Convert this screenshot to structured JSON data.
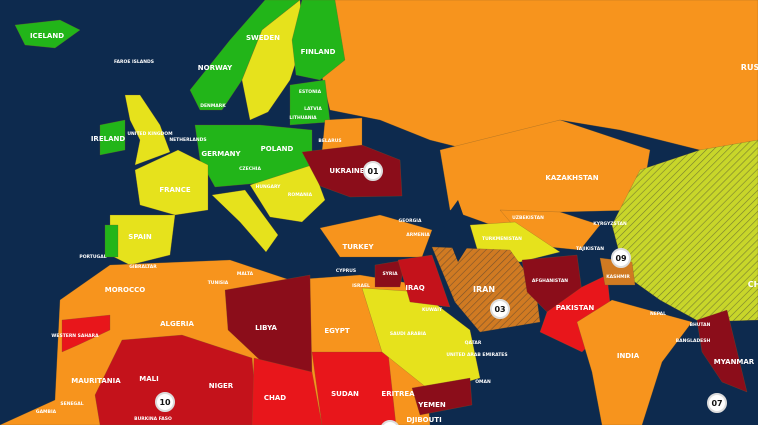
{
  "colors": {
    "ocean": "#0d2a4e",
    "minimal": "#22b519",
    "low": "#e6e21c",
    "medium": "#f7941d",
    "high": "#e8161b",
    "extreme": "#8b0d1a",
    "hatched_base": "#c8d62a"
  },
  "labels": [
    "ICELAND",
    "NORWAY",
    "SWEDEN",
    "FINLAND",
    "ESTONIA",
    "LATVIA",
    "LITHUANIA",
    "DENMARK",
    "IRELAND",
    "UNITED KINGDOM",
    "GERMANY",
    "POLAND",
    "BELARUS",
    "UKRAINE",
    "CZECHIA",
    "HUNGARY",
    "ROMANIA",
    "FRANCE",
    "SPAIN",
    "PORTUGAL",
    "TURKEY",
    "MALTA",
    "CYPRUS",
    "ISRAEL",
    "MOROCCO",
    "ALGERIA",
    "TUNISIA",
    "LIBYA",
    "EGYPT",
    "WESTERN SAHARA",
    "MAURITANIA",
    "MALI",
    "NIGER",
    "CHAD",
    "SUDAN",
    "ERITREA",
    "YEMEN",
    "SAUDI ARABIA",
    "OMAN",
    "SYRIA",
    "IRAQ",
    "IRAN",
    "AFGHANISTAN",
    "PAKISTAN",
    "INDIA",
    "KAZAKHSTAN",
    "UZBEKISTAN",
    "KYRGYZSTAN",
    "TAJIKISTAN",
    "TURKMENISTAN",
    "KASHMIR",
    "NEPAL",
    "BHUTAN",
    "BANGLADESH",
    "MYANMAR",
    "RUS",
    "SENEGAL",
    "GAMBIA",
    "BURKINA FASO",
    "DJIBOUTI",
    "GEORGIA",
    "ARMENIA",
    "GIBRALTAR",
    "FAROE ISLANDS",
    "NETHERLANDS",
    "KUWAIT",
    "QATAR",
    "UNITED ARAB EMIRATES",
    "CH"
  ],
  "markers": [
    "01",
    "03",
    "09",
    "10",
    "07",
    ""
  ]
}
